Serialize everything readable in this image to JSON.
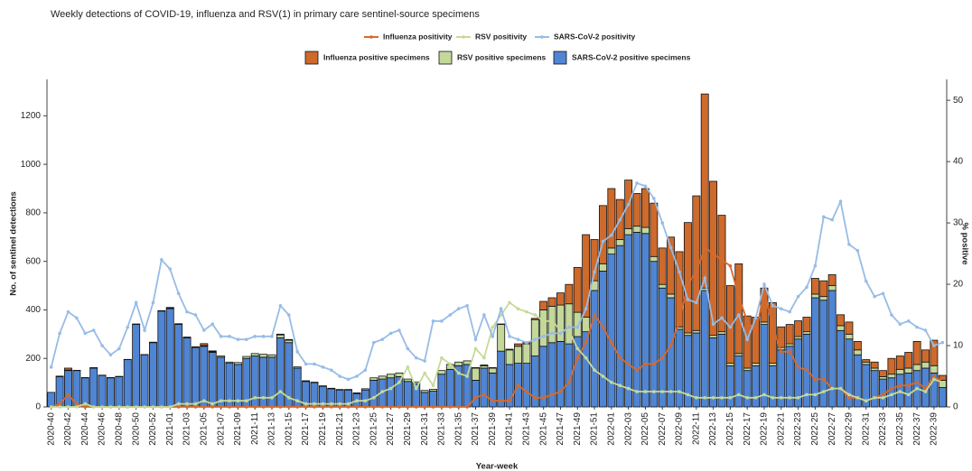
{
  "chart_data": {
    "type": "bar",
    "title": "Weekly detections of COVID-19, influenza and RSV(1) in primary care sentinel-source specimens",
    "x_label": "Year-week",
    "y_label": "No. of sentinel detections",
    "y2_label": "% positive",
    "legend": "top",
    "categories": [
      "2020-40",
      null,
      "2020-42",
      null,
      "2020-44",
      null,
      "2020-46",
      null,
      "2020-48",
      null,
      "2020-50",
      null,
      "2020-52",
      null,
      "2021-01",
      null,
      "2021-03",
      null,
      "2021-05",
      null,
      "2021-07",
      null,
      "2021-09",
      null,
      "2021-11",
      null,
      "2021-13",
      null,
      "2021-15",
      null,
      "2021-17",
      null,
      "2021-19",
      null,
      "2021-21",
      null,
      "2021-23",
      null,
      "2021-25",
      null,
      "2021-27",
      null,
      "2021-29",
      null,
      "2021-31",
      null,
      "2021-33",
      null,
      "2021-35",
      null,
      "2021-37",
      null,
      "2021-39",
      null,
      "2021-41",
      null,
      "2021-43",
      null,
      "2021-45",
      null,
      "2021-47",
      null,
      "2021-49",
      null,
      "2021-51",
      null,
      "2022-01",
      null,
      "2022-03",
      null,
      "2022-05",
      null,
      "2022-07",
      null,
      "2022-09",
      null,
      "2022-11",
      null,
      "2022-13",
      null,
      "2022-15",
      null,
      "2022-17",
      null,
      "2022-19",
      null,
      "2022-21",
      null,
      "2022-23",
      null,
      "2022-25",
      null,
      "2022-27",
      null,
      "2022-29",
      null,
      "2022-31",
      null,
      "2022-33",
      null,
      "2022-35",
      null,
      "2022-37",
      null,
      "2022-39",
      null
    ],
    "ylim": [
      0,
      1350
    ],
    "yticks": [
      0,
      200,
      400,
      600,
      800,
      1000,
      1200
    ],
    "y2lim": [
      0,
      53.4
    ],
    "y2ticks": [
      0,
      10,
      20,
      30,
      40,
      50
    ],
    "series": [
      {
        "name": "Influenza positivity",
        "type": "line",
        "axis": "y2",
        "color": "#d9692b",
        "values": [
          0,
          0.5,
          2,
          0.5,
          0,
          0,
          0,
          0,
          0,
          0,
          0,
          0,
          0,
          0,
          0,
          0,
          0,
          0,
          0,
          0,
          0,
          0,
          0,
          0,
          0,
          0,
          0,
          0,
          0,
          0,
          0,
          0,
          0,
          0,
          0,
          0,
          0,
          0,
          0,
          0,
          0,
          0,
          0,
          0,
          0,
          0,
          0,
          0,
          0,
          0,
          1.5,
          2,
          1,
          1,
          1,
          3.5,
          2.5,
          1.5,
          1.5,
          2,
          2.5,
          4,
          8,
          10.5,
          15,
          13,
          10.5,
          8,
          7,
          6,
          7,
          7,
          8,
          10,
          14,
          20,
          22,
          26,
          25,
          24,
          23,
          18,
          14,
          12,
          19,
          13,
          9,
          9,
          6.5,
          6,
          4.5,
          4.5,
          3,
          3,
          1.5,
          1.5,
          1,
          1.5,
          2,
          3,
          3.5,
          3.5,
          4,
          3,
          5,
          4
        ]
      },
      {
        "name": "RSV positivity",
        "type": "line",
        "axis": "y2",
        "color": "#c6da98",
        "values": [
          0,
          0,
          0,
          0,
          0.5,
          0,
          0,
          0,
          0,
          0,
          0,
          0,
          0,
          0,
          0,
          0.5,
          0.5,
          0.5,
          1,
          0.5,
          1,
          1,
          1,
          1,
          1.5,
          1.5,
          1.5,
          2.5,
          1.5,
          1,
          0.5,
          0.5,
          0.5,
          0.5,
          0.5,
          0.5,
          1,
          1,
          1.5,
          2.5,
          3,
          4,
          6.5,
          3,
          5.5,
          3.5,
          8,
          7,
          5.5,
          5,
          9.5,
          8,
          13,
          15,
          17,
          16,
          15.5,
          15,
          14,
          14,
          12.5,
          12.5,
          9.5,
          8,
          6,
          5,
          4,
          3.5,
          3,
          2.5,
          2.5,
          2.5,
          2.5,
          2.5,
          2.5,
          2,
          1.5,
          1.5,
          1.5,
          1.5,
          1.5,
          2,
          1.5,
          1.5,
          2,
          1.5,
          1.5,
          1.5,
          1.5,
          2,
          2,
          2.5,
          3,
          3,
          2,
          1.5,
          1,
          1.5,
          1.5,
          2,
          2.5,
          2,
          3,
          2.5,
          4.5,
          4
        ]
      },
      {
        "name": "SARS-CoV-2 positivity",
        "type": "line",
        "axis": "y2",
        "color": "#98bce6",
        "values": [
          6.5,
          12,
          15.5,
          14.5,
          12,
          12.5,
          10,
          8.5,
          9.5,
          13,
          17,
          12.5,
          17,
          24,
          22.5,
          18.5,
          15.5,
          15,
          12.5,
          13.5,
          11.5,
          11.5,
          11,
          11,
          11.5,
          11.5,
          11.5,
          16.5,
          15,
          9,
          7,
          7,
          6.5,
          6,
          5,
          4.5,
          5,
          6,
          10.5,
          11,
          12,
          12.5,
          9.5,
          8,
          7.5,
          14,
          14,
          15,
          16,
          16.5,
          11,
          15,
          11.5,
          16,
          11.5,
          11,
          10.5,
          11,
          11.5,
          12,
          12,
          13,
          13,
          16,
          22,
          27,
          28,
          30.5,
          33,
          36.5,
          36,
          34,
          30,
          26,
          22,
          17.5,
          17,
          21,
          13.5,
          14.5,
          13,
          15,
          11,
          14.5,
          20,
          16.5,
          16,
          15.5,
          18,
          19.5,
          23,
          31,
          30.5,
          33.5,
          26.5,
          25.5,
          20.5,
          18,
          18.5,
          15,
          13.5,
          14,
          13,
          12.5,
          10,
          10.5
        ]
      },
      {
        "name": "Influenza positive specimens",
        "type": "bar",
        "color": "#cd6a2c",
        "values": [
          0,
          0,
          8,
          0,
          0,
          0,
          0,
          0,
          0,
          0,
          0,
          0,
          0,
          0,
          3,
          0,
          0,
          0,
          8,
          3,
          0,
          0,
          0,
          0,
          0,
          0,
          0,
          3,
          3,
          0,
          0,
          0,
          0,
          0,
          0,
          0,
          0,
          0,
          0,
          0,
          0,
          0,
          0,
          0,
          0,
          0,
          0,
          0,
          0,
          0,
          2,
          3,
          2,
          2,
          3,
          10,
          8,
          5,
          35,
          35,
          50,
          80,
          185,
          340,
          170,
          240,
          245,
          165,
          200,
          135,
          160,
          220,
          150,
          235,
          310,
          455,
          555,
          800,
          635,
          480,
          320,
          370,
          215,
          190,
          140,
          250,
          85,
          80,
          65,
          60,
          65,
          65,
          45,
          45,
          50,
          35,
          10,
          25,
          25,
          65,
          55,
          65,
          95,
          50,
          105,
          20
        ]
      },
      {
        "name": "RSV positive specimens",
        "type": "bar",
        "color": "#c4d89a",
        "values": [
          0,
          2,
          2,
          1,
          1,
          2,
          1,
          1,
          1,
          1,
          2,
          1,
          2,
          2,
          2,
          3,
          3,
          3,
          3,
          3,
          5,
          5,
          8,
          8,
          10,
          12,
          10,
          12,
          10,
          5,
          3,
          2,
          2,
          2,
          2,
          2,
          3,
          5,
          10,
          12,
          15,
          15,
          10,
          8,
          8,
          8,
          15,
          20,
          15,
          15,
          50,
          10,
          20,
          110,
          60,
          70,
          80,
          150,
          150,
          150,
          150,
          165,
          100,
          60,
          40,
          30,
          25,
          25,
          25,
          25,
          25,
          20,
          15,
          15,
          10,
          10,
          10,
          10,
          10,
          10,
          10,
          10,
          10,
          10,
          10,
          10,
          10,
          10,
          10,
          10,
          15,
          15,
          20,
          20,
          20,
          20,
          10,
          10,
          10,
          15,
          20,
          20,
          25,
          25,
          30,
          30
        ]
      },
      {
        "name": "SARS-CoV-2 positive specimens",
        "type": "bar",
        "color": "#4f85d3",
        "values": [
          60,
          125,
          150,
          150,
          120,
          160,
          130,
          120,
          125,
          195,
          340,
          215,
          265,
          395,
          405,
          340,
          285,
          245,
          250,
          225,
          205,
          180,
          175,
          200,
          210,
          205,
          205,
          285,
          265,
          160,
          105,
          100,
          85,
          75,
          70,
          70,
          55,
          70,
          110,
          115,
          120,
          125,
          105,
          95,
          60,
          65,
          135,
          155,
          170,
          175,
          110,
          160,
          140,
          230,
          175,
          180,
          180,
          210,
          250,
          265,
          270,
          260,
          290,
          310,
          480,
          560,
          630,
          665,
          710,
          720,
          715,
          600,
          490,
          450,
          320,
          295,
          305,
          480,
          285,
          300,
          170,
          210,
          150,
          170,
          340,
          170,
          235,
          250,
          280,
          300,
          450,
          440,
          480,
          315,
          280,
          215,
          175,
          150,
          115,
          120,
          135,
          140,
          150,
          160,
          140,
          80
        ]
      }
    ]
  }
}
